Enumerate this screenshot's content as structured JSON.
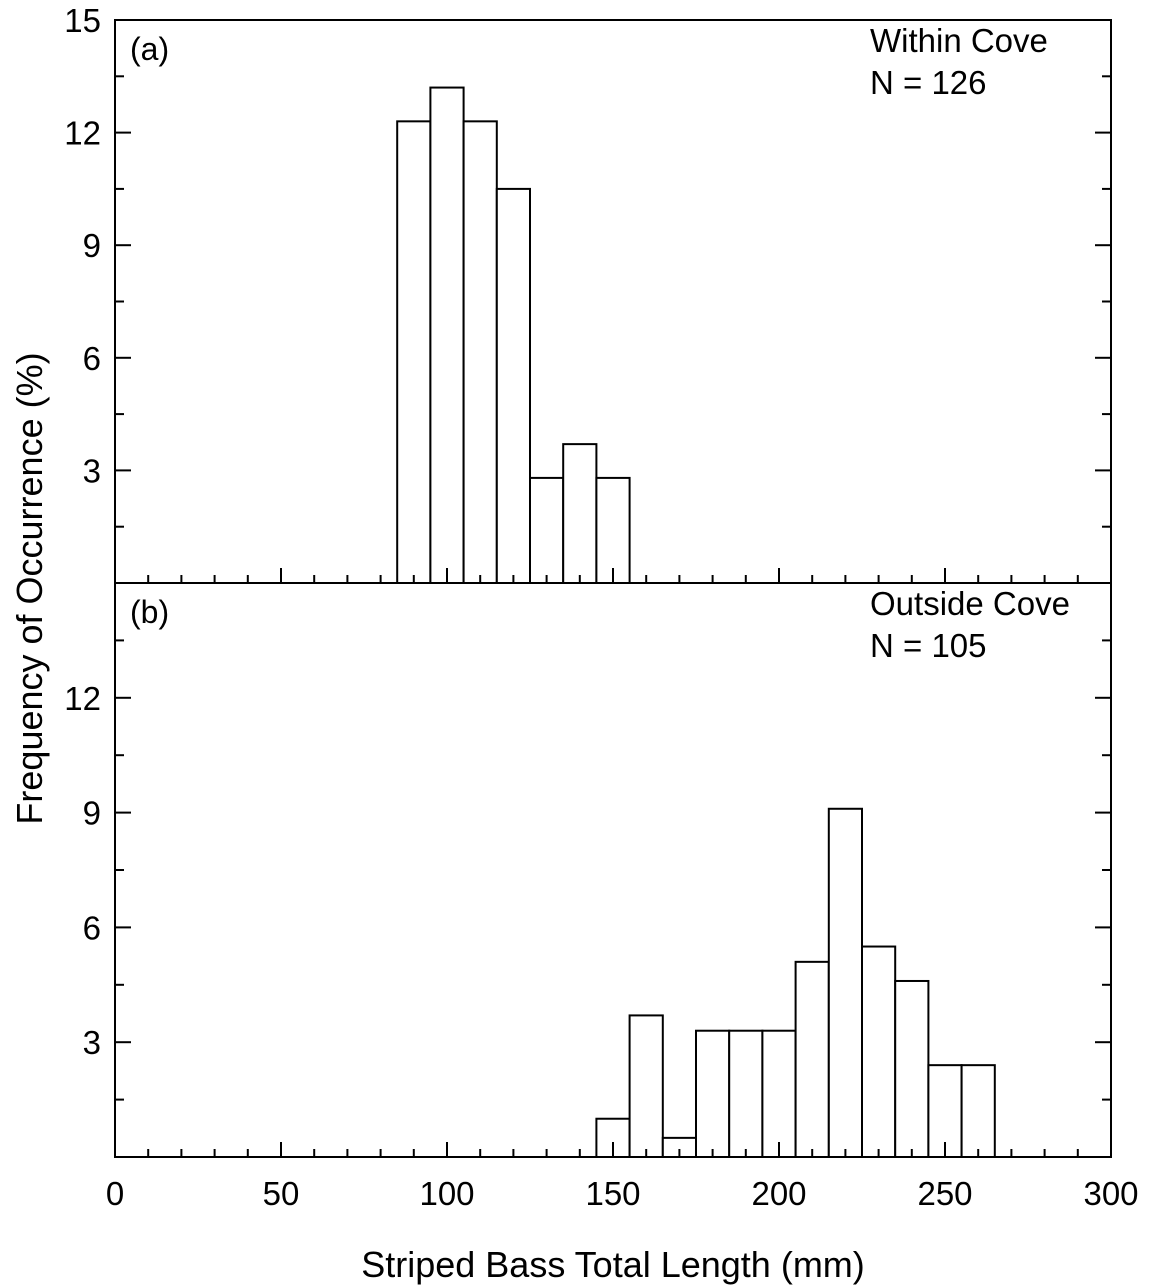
{
  "chart_data": {
    "type": "bar",
    "xlabel": "Striped Bass Total Length (mm)",
    "ylabel": "Frequency of Occurrence (%)",
    "xlim": [
      0,
      300
    ],
    "x_ticks": [
      0,
      50,
      100,
      150,
      200,
      250,
      300
    ],
    "bin_width": 10,
    "panels": [
      {
        "tag": "(a)",
        "annotation_line1": "Within Cove",
        "annotation_line2": "N = 126",
        "ylim": [
          0,
          15
        ],
        "y_ticks": [
          3,
          6,
          9,
          12,
          15
        ],
        "y_tick_labels": [
          "3",
          "6",
          "9",
          "12",
          "15"
        ],
        "bins": [
          {
            "x": 90,
            "value": 12.3
          },
          {
            "x": 100,
            "value": 13.2
          },
          {
            "x": 110,
            "value": 12.3
          },
          {
            "x": 120,
            "value": 10.5
          },
          {
            "x": 130,
            "value": 2.8
          },
          {
            "x": 140,
            "value": 3.7
          },
          {
            "x": 150,
            "value": 2.8
          }
        ]
      },
      {
        "tag": "(b)",
        "annotation_line1": "Outside Cove",
        "annotation_line2": "N = 105",
        "ylim": [
          0,
          15
        ],
        "y_ticks": [
          3,
          6,
          9,
          12
        ],
        "y_tick_labels": [
          "3",
          "6",
          "9",
          "12"
        ],
        "bins": [
          {
            "x": 150,
            "value": 1.0
          },
          {
            "x": 160,
            "value": 3.7
          },
          {
            "x": 170,
            "value": 0.5
          },
          {
            "x": 180,
            "value": 3.3
          },
          {
            "x": 190,
            "value": 3.3
          },
          {
            "x": 200,
            "value": 3.3
          },
          {
            "x": 210,
            "value": 5.1
          },
          {
            "x": 220,
            "value": 9.1
          },
          {
            "x": 230,
            "value": 5.5
          },
          {
            "x": 240,
            "value": 4.6
          },
          {
            "x": 250,
            "value": 2.4
          },
          {
            "x": 260,
            "value": 2.4
          }
        ]
      }
    ]
  }
}
